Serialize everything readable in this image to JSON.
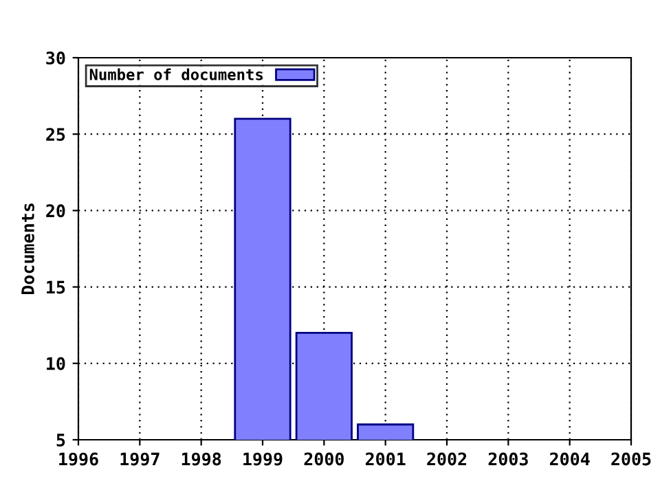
{
  "chart_data": {
    "type": "bar",
    "ylabel": "Documents",
    "x": [
      1999,
      2000,
      2001
    ],
    "series": [
      {
        "name": "Number of documents",
        "color": "#8080ff",
        "values": [
          26,
          12,
          6
        ]
      }
    ],
    "xlim": [
      1996,
      2005
    ],
    "xticks": [
      1996,
      1997,
      1998,
      1999,
      2000,
      2001,
      2002,
      2003,
      2004,
      2005
    ],
    "ylim": [
      5,
      30
    ],
    "yticks": [
      5,
      10,
      15,
      20,
      25,
      30
    ],
    "grid": true,
    "legend": "top left"
  }
}
